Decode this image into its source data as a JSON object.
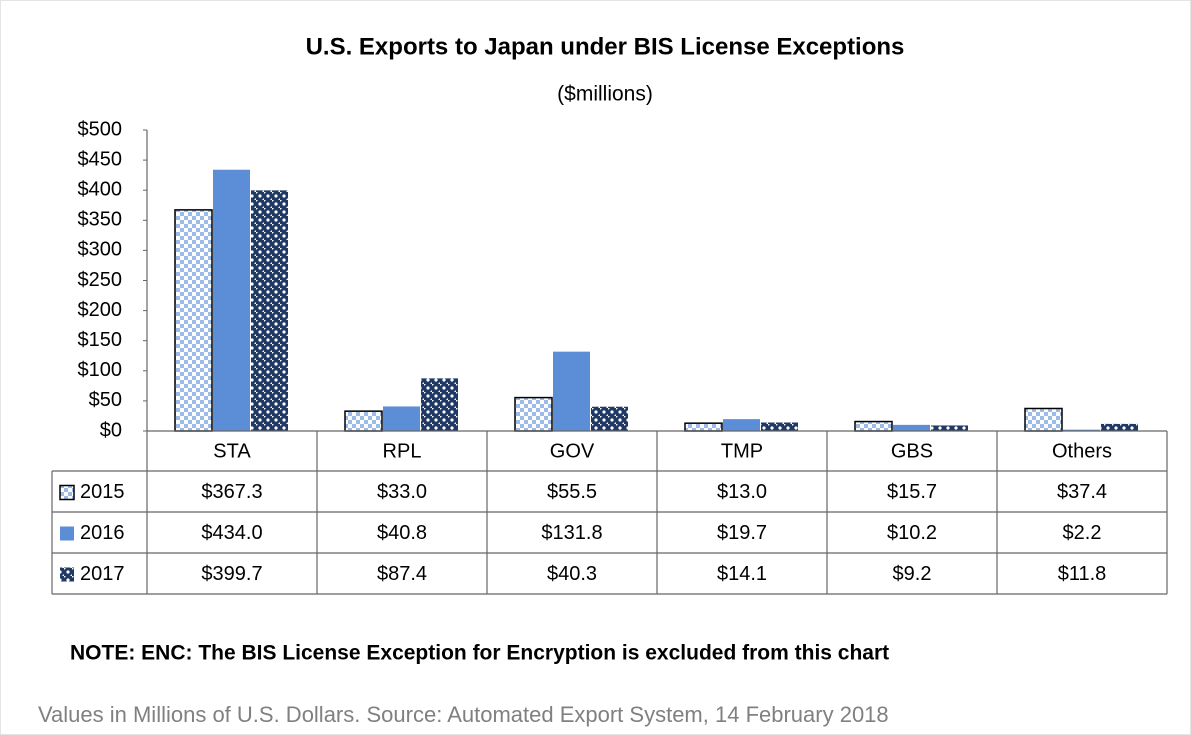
{
  "chart_data": {
    "type": "bar",
    "title": "U.S. Exports to Japan under BIS License Exceptions",
    "subtitle": "($millions)",
    "categories": [
      "STA",
      "RPL",
      "GOV",
      "TMP",
      "GBS",
      "Others"
    ],
    "series": [
      {
        "name": "2015",
        "color": "#9dbbe8",
        "values": [
          367.3,
          33.0,
          55.5,
          13.0,
          15.7,
          37.4
        ],
        "value_labels": [
          "$367.3",
          "$33.0",
          "$55.5",
          "$13.0",
          "$15.7",
          "$37.4"
        ]
      },
      {
        "name": "2016",
        "color": "#5b8ed6",
        "values": [
          434.0,
          40.8,
          131.8,
          19.7,
          10.2,
          2.2
        ],
        "value_labels": [
          "$434.0",
          "$40.8",
          "$131.8",
          "$19.7",
          "$10.2",
          "$2.2"
        ]
      },
      {
        "name": "2017",
        "color": "#1f3864",
        "values": [
          399.7,
          87.4,
          40.3,
          14.1,
          9.2,
          11.8
        ],
        "value_labels": [
          "$399.7",
          "$87.4",
          "$40.3",
          "$14.1",
          "$9.2",
          "$11.8"
        ]
      }
    ],
    "ylim": [
      0,
      500
    ],
    "yticks": [
      {
        "value": 0,
        "label": "$0"
      },
      {
        "value": 50,
        "label": "$50"
      },
      {
        "value": 100,
        "label": "$100"
      },
      {
        "value": 150,
        "label": "$150"
      },
      {
        "value": 200,
        "label": "$200"
      },
      {
        "value": 250,
        "label": "$250"
      },
      {
        "value": 300,
        "label": "$300"
      },
      {
        "value": 350,
        "label": "$350"
      },
      {
        "value": 400,
        "label": "$400"
      },
      {
        "value": 450,
        "label": "$450"
      },
      {
        "value": 500,
        "label": "$500"
      }
    ],
    "grid": false,
    "note": "NOTE: ENC: The BIS License Exception for Encryption is excluded from this chart",
    "source": "Values in Millions of U.S. Dollars. Source: Automated Export System, 14 February 2018"
  }
}
